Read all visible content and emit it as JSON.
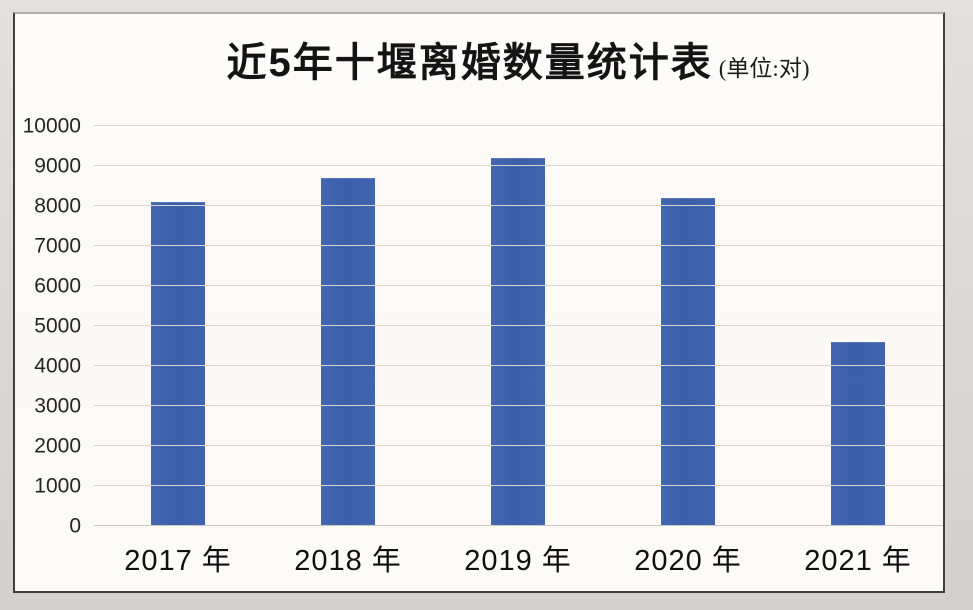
{
  "page": {
    "background": "#d8d6d3",
    "panel_background": "#fcfbf8",
    "panel_border_color": "#403f3d"
  },
  "chart_data": {
    "type": "bar",
    "title": "近5年十堰离婚数量统计表",
    "unit_label": "(单位:对)",
    "categories": [
      "2017 年",
      "2018 年",
      "2019 年",
      "2020 年",
      "2021 年"
    ],
    "values": [
      8100,
      8700,
      9200,
      8200,
      4600
    ],
    "xlabel": "",
    "ylabel": "",
    "ylim": [
      0,
      10000
    ],
    "yticks": [
      0,
      1000,
      2000,
      3000,
      4000,
      5000,
      6000,
      7000,
      8000,
      9000,
      10000
    ],
    "grid": true,
    "legend_position": "none",
    "bar_color": "#3f62ac",
    "gridline_color": "#d9d6d2"
  }
}
